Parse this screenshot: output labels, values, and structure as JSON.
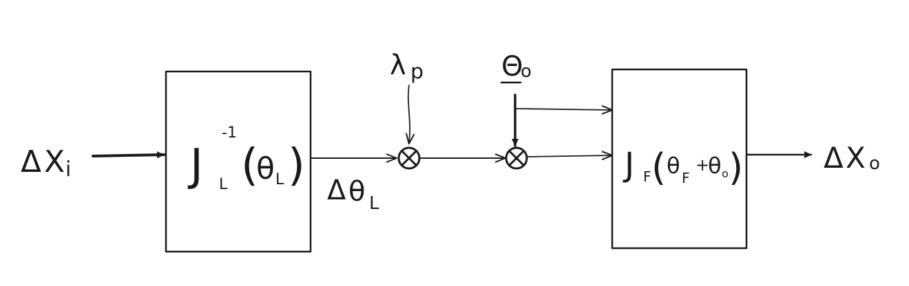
{
  "input": {
    "delta": "Δ",
    "symbol": "X",
    "sub": "i"
  },
  "output": {
    "delta": "Δ",
    "symbol": "X",
    "sub": "o"
  },
  "block_left": {
    "J": "J",
    "sub": "L",
    "sup": "-1",
    "open": "(",
    "theta": "θ",
    "theta_sub": "L",
    "close": ")"
  },
  "block_right": {
    "J": "J",
    "sub": "F",
    "open": "(",
    "theta": "θ",
    "theta_sub": "F",
    "plus": "+",
    "theta2": "θ",
    "theta2_sub": "o",
    "close": ")"
  },
  "signal_between": {
    "delta": "Δ",
    "theta": "θ",
    "sub": "L"
  },
  "lambda_input": {
    "symbol": "λ",
    "sub": "p"
  },
  "theta0_input": {
    "symbol": "Θ",
    "sub": "o"
  },
  "junction_symbol": "⊗"
}
